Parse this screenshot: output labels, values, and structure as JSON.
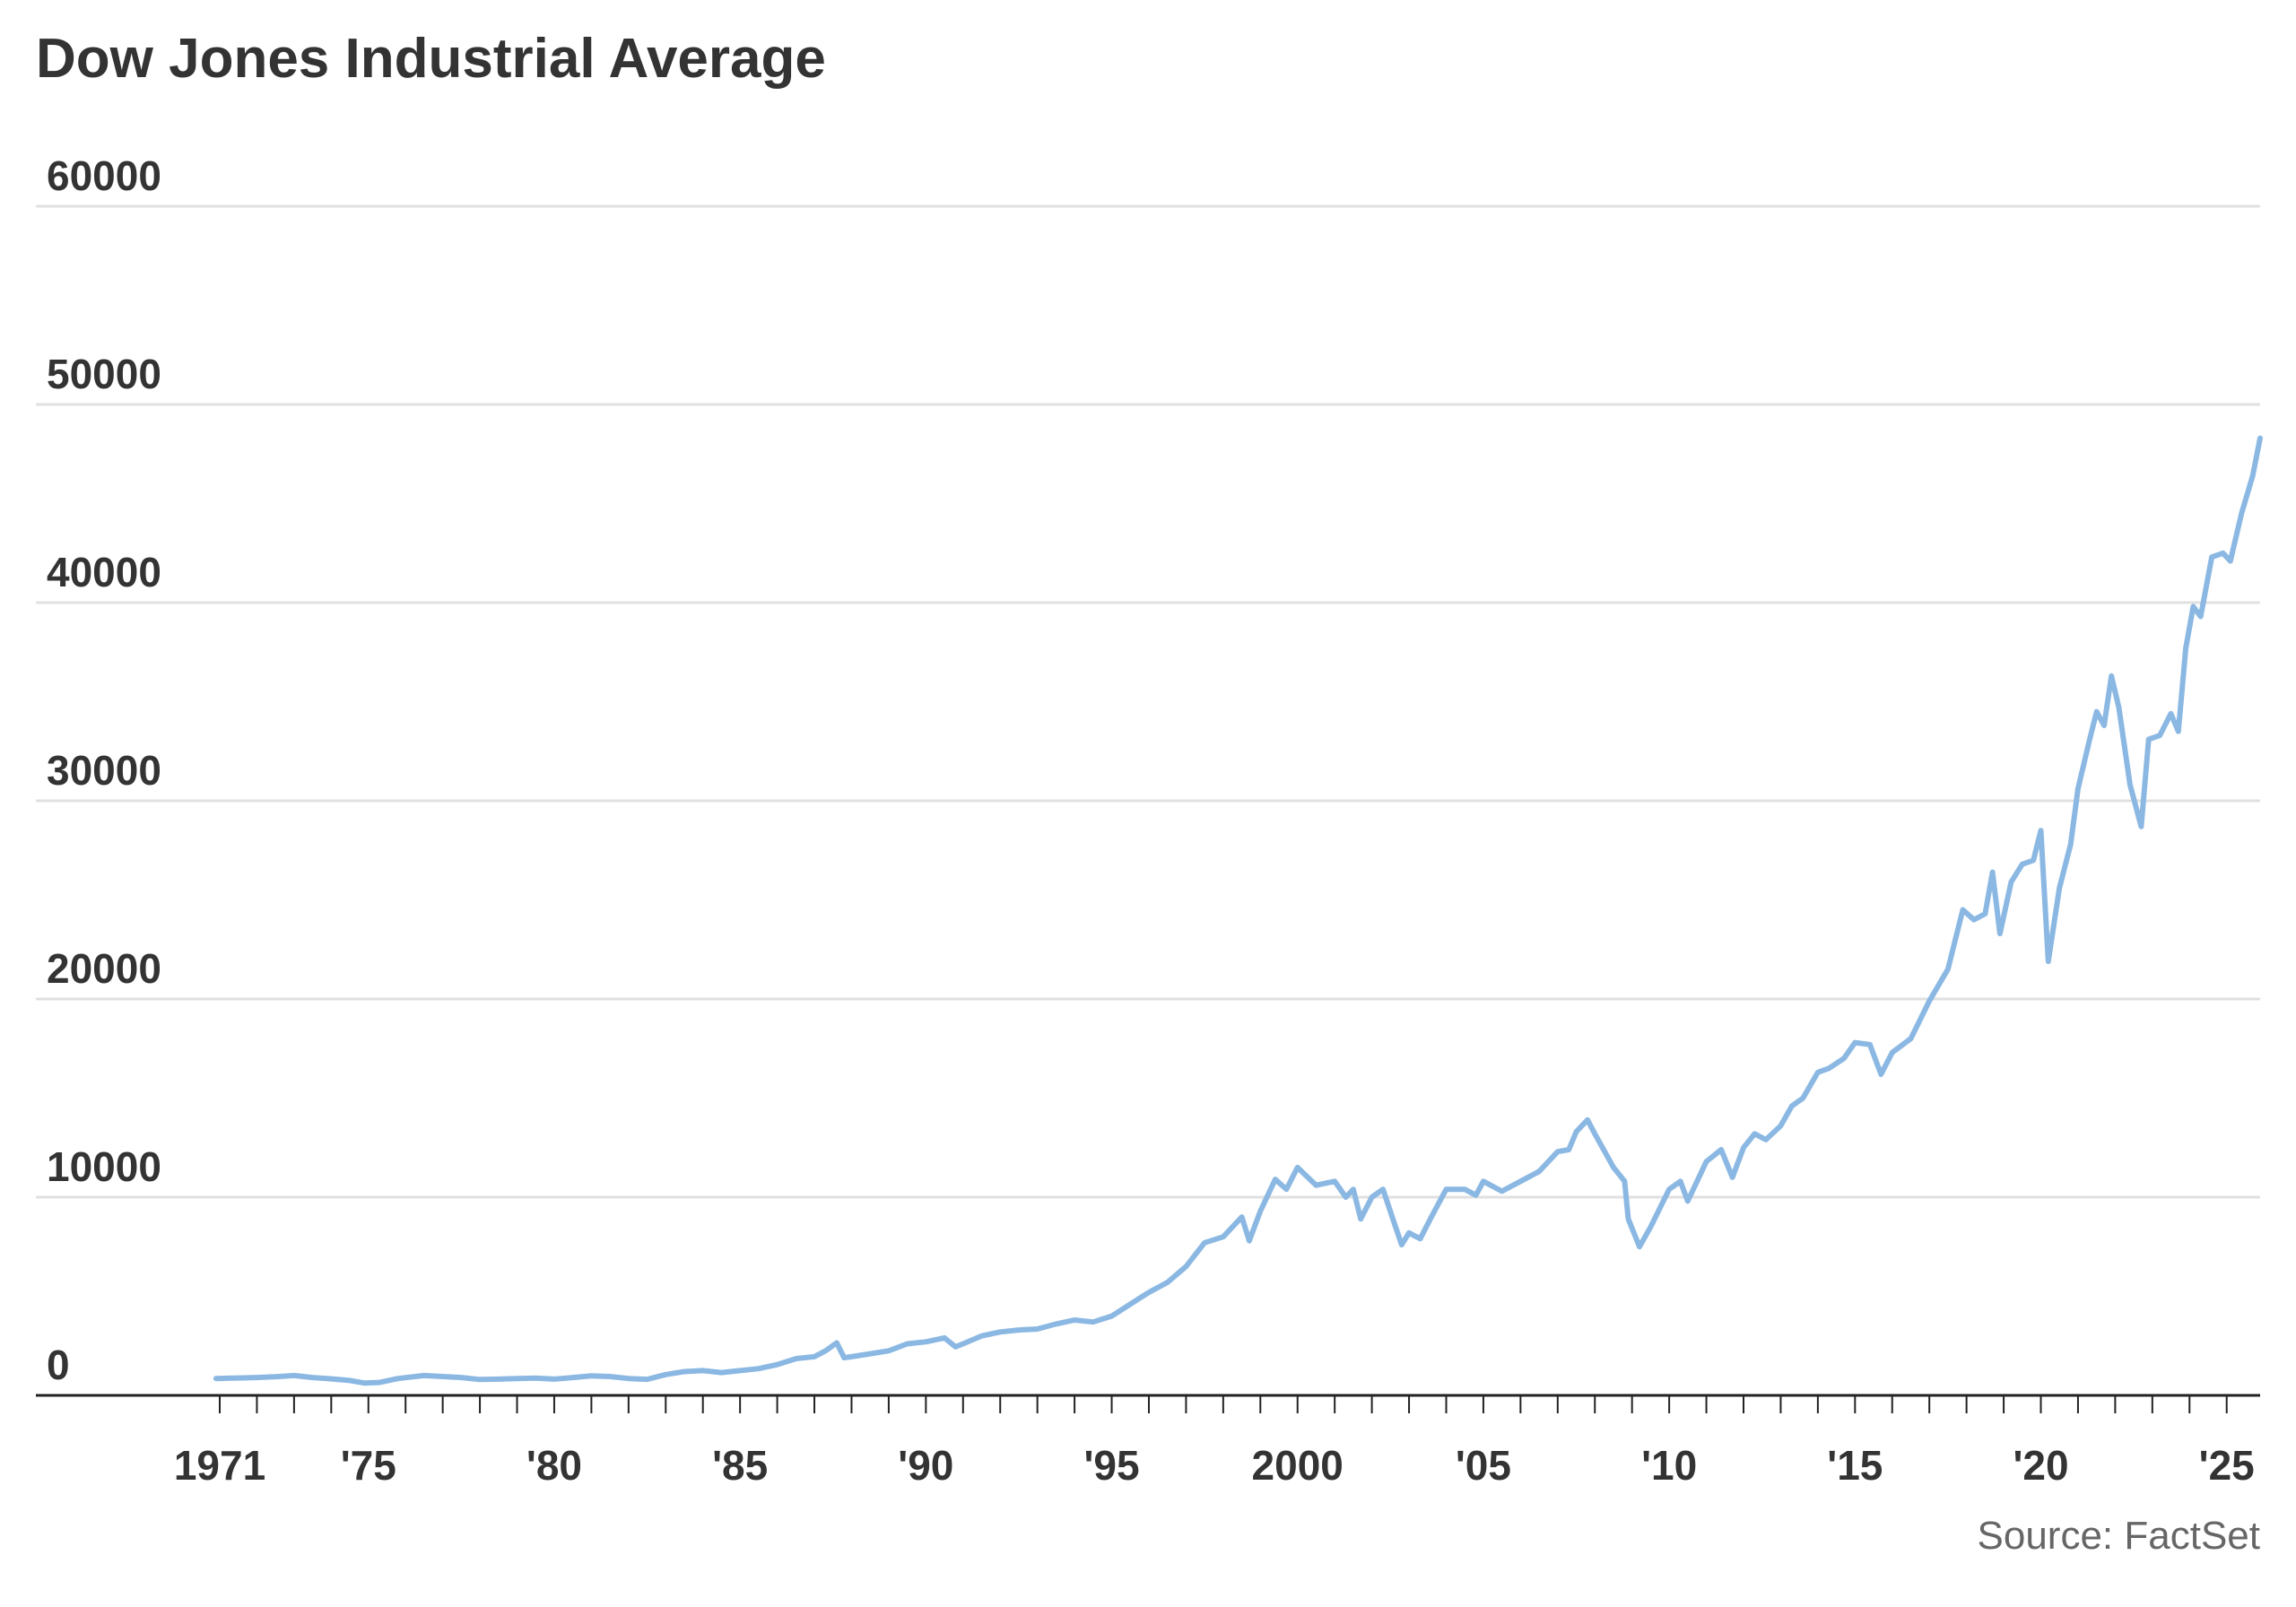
{
  "title": "Dow Jones Industrial Average",
  "source": "Source: FactSet",
  "colors": {
    "line": "#8bb8e3",
    "grid": "#e0e0e0",
    "axis": "#222222",
    "text": "#333333"
  },
  "chart_data": {
    "type": "line",
    "title": "Dow Jones Industrial Average",
    "xlabel": "",
    "ylabel": "",
    "ylim": [
      0,
      60000
    ],
    "xlim": [
      1971,
      2025.9
    ],
    "grid": "horizontal",
    "legend": "none",
    "yticks": [
      {
        "value": 0,
        "label": "0"
      },
      {
        "value": 10000,
        "label": "10000"
      },
      {
        "value": 20000,
        "label": "20000"
      },
      {
        "value": 30000,
        "label": "30000"
      },
      {
        "value": 40000,
        "label": "40000"
      },
      {
        "value": 50000,
        "label": "50000"
      },
      {
        "value": 60000,
        "label": "60000"
      }
    ],
    "xticks": [
      {
        "value": 1971,
        "label": "1971"
      },
      {
        "value": 1975,
        "label": "'75"
      },
      {
        "value": 1980,
        "label": "'80"
      },
      {
        "value": 1985,
        "label": "'85"
      },
      {
        "value": 1990,
        "label": "'90"
      },
      {
        "value": 1995,
        "label": "'95"
      },
      {
        "value": 2000,
        "label": "2000"
      },
      {
        "value": 2005,
        "label": "'05"
      },
      {
        "value": 2010,
        "label": "'10"
      },
      {
        "value": 2015,
        "label": "'15"
      },
      {
        "value": 2020,
        "label": "'20"
      },
      {
        "value": 2025,
        "label": "'25"
      }
    ],
    "series": [
      {
        "points": [
          [
            1970.9,
            850
          ],
          [
            1971.5,
            880
          ],
          [
            1972.0,
            900
          ],
          [
            1972.6,
            950
          ],
          [
            1973.0,
            1000
          ],
          [
            1973.5,
            900
          ],
          [
            1973.9,
            850
          ],
          [
            1974.5,
            750
          ],
          [
            1974.9,
            620
          ],
          [
            1975.3,
            650
          ],
          [
            1975.8,
            850
          ],
          [
            1976.5,
            1000
          ],
          [
            1977.0,
            950
          ],
          [
            1977.5,
            900
          ],
          [
            1978.0,
            800
          ],
          [
            1978.5,
            820
          ],
          [
            1979.0,
            850
          ],
          [
            1979.5,
            870
          ],
          [
            1980.0,
            820
          ],
          [
            1980.5,
            900
          ],
          [
            1981.0,
            980
          ],
          [
            1981.5,
            950
          ],
          [
            1982.0,
            850
          ],
          [
            1982.5,
            810
          ],
          [
            1983.0,
            1050
          ],
          [
            1983.5,
            1200
          ],
          [
            1984.0,
            1250
          ],
          [
            1984.5,
            1150
          ],
          [
            1985.0,
            1250
          ],
          [
            1985.5,
            1350
          ],
          [
            1986.0,
            1550
          ],
          [
            1986.5,
            1850
          ],
          [
            1987.0,
            1950
          ],
          [
            1987.3,
            2250
          ],
          [
            1987.6,
            2650
          ],
          [
            1987.8,
            1900
          ],
          [
            1988.0,
            1950
          ],
          [
            1988.5,
            2100
          ],
          [
            1989.0,
            2250
          ],
          [
            1989.5,
            2600
          ],
          [
            1990.0,
            2700
          ],
          [
            1990.5,
            2900
          ],
          [
            1990.8,
            2450
          ],
          [
            1991.0,
            2600
          ],
          [
            1991.5,
            3000
          ],
          [
            1992.0,
            3200
          ],
          [
            1992.5,
            3300
          ],
          [
            1993.0,
            3350
          ],
          [
            1993.5,
            3600
          ],
          [
            1994.0,
            3800
          ],
          [
            1994.5,
            3700
          ],
          [
            1995.0,
            4000
          ],
          [
            1995.5,
            4600
          ],
          [
            1996.0,
            5200
          ],
          [
            1996.5,
            5700
          ],
          [
            1997.0,
            6500
          ],
          [
            1997.5,
            7700
          ],
          [
            1998.0,
            8000
          ],
          [
            1998.5,
            9000
          ],
          [
            1998.7,
            7800
          ],
          [
            1999.0,
            9300
          ],
          [
            1999.4,
            10900
          ],
          [
            1999.7,
            10400
          ],
          [
            2000.0,
            11500
          ],
          [
            2000.5,
            10600
          ],
          [
            2001.0,
            10800
          ],
          [
            2001.3,
            10000
          ],
          [
            2001.5,
            10400
          ],
          [
            2001.7,
            8900
          ],
          [
            2002.0,
            10000
          ],
          [
            2002.3,
            10400
          ],
          [
            2002.6,
            8700
          ],
          [
            2002.8,
            7600
          ],
          [
            2003.0,
            8200
          ],
          [
            2003.3,
            7900
          ],
          [
            2003.6,
            9000
          ],
          [
            2004.0,
            10400
          ],
          [
            2004.5,
            10400
          ],
          [
            2004.8,
            10100
          ],
          [
            2005.0,
            10800
          ],
          [
            2005.5,
            10300
          ],
          [
            2006.0,
            10800
          ],
          [
            2006.5,
            11300
          ],
          [
            2007.0,
            12300
          ],
          [
            2007.3,
            12400
          ],
          [
            2007.5,
            13300
          ],
          [
            2007.8,
            13900
          ],
          [
            2008.0,
            13200
          ],
          [
            2008.5,
            11500
          ],
          [
            2008.8,
            10800
          ],
          [
            2008.9,
            8900
          ],
          [
            2009.2,
            7500
          ],
          [
            2009.5,
            8500
          ],
          [
            2010.0,
            10400
          ],
          [
            2010.3,
            10800
          ],
          [
            2010.5,
            9800
          ],
          [
            2011.0,
            11800
          ],
          [
            2011.4,
            12400
          ],
          [
            2011.7,
            11000
          ],
          [
            2012.0,
            12500
          ],
          [
            2012.3,
            13200
          ],
          [
            2012.6,
            12900
          ],
          [
            2013.0,
            13600
          ],
          [
            2013.3,
            14600
          ],
          [
            2013.6,
            15000
          ],
          [
            2014.0,
            16300
          ],
          [
            2014.3,
            16500
          ],
          [
            2014.7,
            17000
          ],
          [
            2015.0,
            17800
          ],
          [
            2015.4,
            17700
          ],
          [
            2015.7,
            16200
          ],
          [
            2016.0,
            17300
          ],
          [
            2016.5,
            18000
          ],
          [
            2017.0,
            19900
          ],
          [
            2017.5,
            21500
          ],
          [
            2017.9,
            24500
          ],
          [
            2018.2,
            24000
          ],
          [
            2018.5,
            24300
          ],
          [
            2018.7,
            26400
          ],
          [
            2018.9,
            23300
          ],
          [
            2019.2,
            25900
          ],
          [
            2019.5,
            26800
          ],
          [
            2019.8,
            27000
          ],
          [
            2020.0,
            28500
          ],
          [
            2020.2,
            21900
          ],
          [
            2020.5,
            25600
          ],
          [
            2020.8,
            27800
          ],
          [
            2021.0,
            30600
          ],
          [
            2021.3,
            33000
          ],
          [
            2021.5,
            34500
          ],
          [
            2021.7,
            33800
          ],
          [
            2021.9,
            36300
          ],
          [
            2022.1,
            34700
          ],
          [
            2022.4,
            30800
          ],
          [
            2022.7,
            28700
          ],
          [
            2022.9,
            33100
          ],
          [
            2023.2,
            33300
          ],
          [
            2023.5,
            34400
          ],
          [
            2023.7,
            33500
          ],
          [
            2023.9,
            37700
          ],
          [
            2024.1,
            39800
          ],
          [
            2024.3,
            39300
          ],
          [
            2024.6,
            42300
          ],
          [
            2024.9,
            42500
          ],
          [
            2025.1,
            42100
          ],
          [
            2025.4,
            44500
          ],
          [
            2025.7,
            46400
          ],
          [
            2025.9,
            48300
          ]
        ]
      }
    ]
  }
}
